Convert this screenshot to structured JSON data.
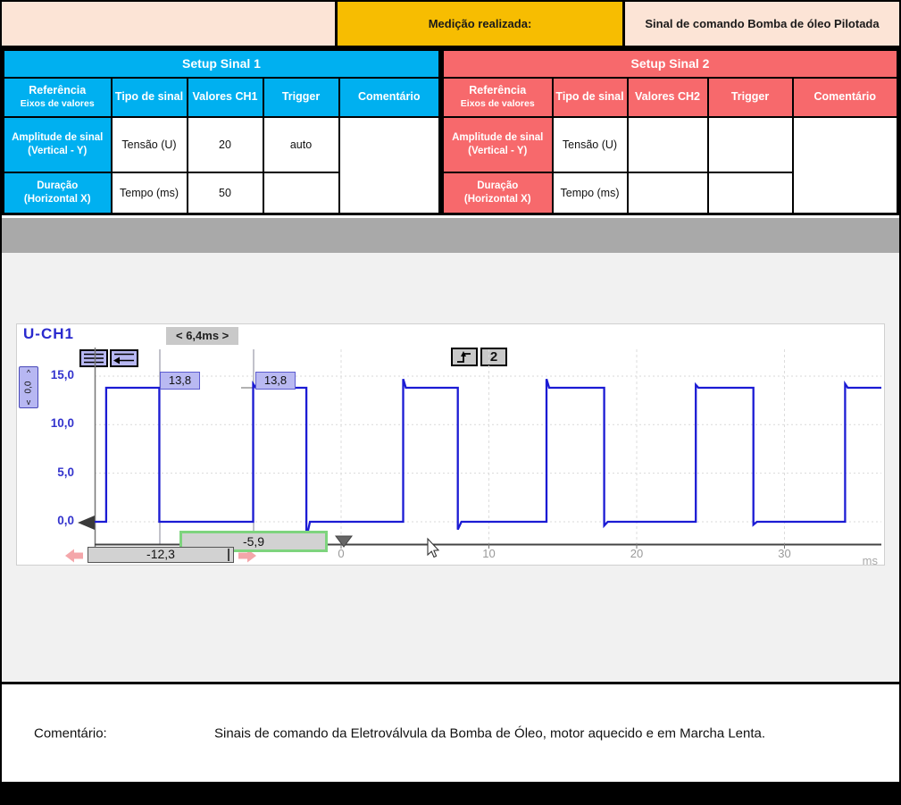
{
  "header": {
    "label": "Medição realizada:",
    "value": "Sinal de comando Bomba de óleo Pilotada"
  },
  "setup1": {
    "title": "Setup Sinal 1",
    "headers": {
      "ref1": "Referência",
      "ref2": "Eixos de valores",
      "tipo": "Tipo de sinal",
      "valores": "Valores CH1",
      "trigger": "Trigger",
      "comentario": "Comentário"
    },
    "rows": [
      {
        "ref1": "Amplitude de sinal",
        "ref2": "(Vertical - Y)",
        "tipo": "Tensão (U)",
        "valor": "20",
        "trigger": "auto",
        "comentario": ""
      },
      {
        "ref1": "Duração",
        "ref2": "(Horizontal X)",
        "tipo": "Tempo (ms)",
        "valor": "50",
        "trigger": ""
      }
    ]
  },
  "setup2": {
    "title": "Setup Sinal 2",
    "headers": {
      "ref1": "Referência",
      "ref2": "Eixos de valores",
      "tipo": "Tipo de sinal",
      "valores": "Valores CH2",
      "trigger": "Trigger",
      "comentario": "Comentário"
    },
    "rows": [
      {
        "ref1": "Amplitude de sinal",
        "ref2": "(Vertical - Y)",
        "tipo": "Tensão (U)",
        "valor": "",
        "trigger": "",
        "comentario": ""
      },
      {
        "ref1": "Duração",
        "ref2": "(Horizontal X)",
        "tipo": "Tempo (ms)",
        "valor": "",
        "trigger": ""
      }
    ]
  },
  "scope": {
    "channel_label": "U-CH1",
    "delta_chip": "< 6,4ms >",
    "trigger_channel": "2",
    "spinner_value": "0,0",
    "cursor_value_1": "13,8",
    "cursor_value_2": "13,8",
    "cursor_time_1": "-12,3",
    "cursor_time_2": "-5,9",
    "unit": "ms"
  },
  "chart_data": {
    "type": "line",
    "title": "U-CH1",
    "xlabel": "ms",
    "ylabel": "U",
    "x_range": [
      -16.7,
      36.5
    ],
    "y_range": [
      -2.3,
      17.8
    ],
    "x_ticks": [
      {
        "t": 0,
        "label": "0"
      },
      {
        "t": 10,
        "label": "10"
      },
      {
        "t": 20,
        "label": "20"
      },
      {
        "t": 30,
        "label": "30"
      }
    ],
    "y_ticks": [
      {
        "v": 15,
        "label": "15,0"
      },
      {
        "v": 10,
        "label": "10,0"
      },
      {
        "v": 5,
        "label": "5,0"
      },
      {
        "v": 0,
        "label": "0,0"
      }
    ],
    "grid": true,
    "high_level": 13.8,
    "low_level": 0,
    "pulses": [
      {
        "rise": -15.9,
        "fall": -12.3,
        "overshoot": 0,
        "undershoot": 0
      },
      {
        "rise": -5.95,
        "fall": -2.35,
        "overshoot": 0.4,
        "undershoot": 1.7
      },
      {
        "rise": 4.2,
        "fall": 7.9,
        "overshoot": 0.9,
        "undershoot": 0.8
      },
      {
        "rise": 13.9,
        "fall": 17.8,
        "overshoot": 0.9,
        "undershoot": 0.4
      },
      {
        "rise": 24.0,
        "fall": 27.9,
        "overshoot": 0.3,
        "undershoot": 0.3
      },
      {
        "rise": 34.1,
        "fall": null,
        "overshoot": 0.4,
        "undershoot": 0
      }
    ],
    "cursors": [
      {
        "t": -12.3,
        "value": 13.8
      },
      {
        "t": -5.9,
        "value": 13.8
      }
    ],
    "delta_t_ms": 6.4,
    "trigger_t": 0
  },
  "comment": {
    "label": "Comentário:",
    "text": "Sinais de comando da Eletroválvula da Bomba de Óleo, motor aquecido e em Marcha Lenta."
  },
  "colors": {
    "accent_ch1": "#00b0f0",
    "accent_ch2": "#f7696c",
    "header_peach": "#fce4d6",
    "header_yellow": "#f7bd01",
    "trace_blue": "#1b1bd4",
    "cursor_box_green": "#7ed47e",
    "scroll_arrow_pink": "#f4a6aa"
  }
}
